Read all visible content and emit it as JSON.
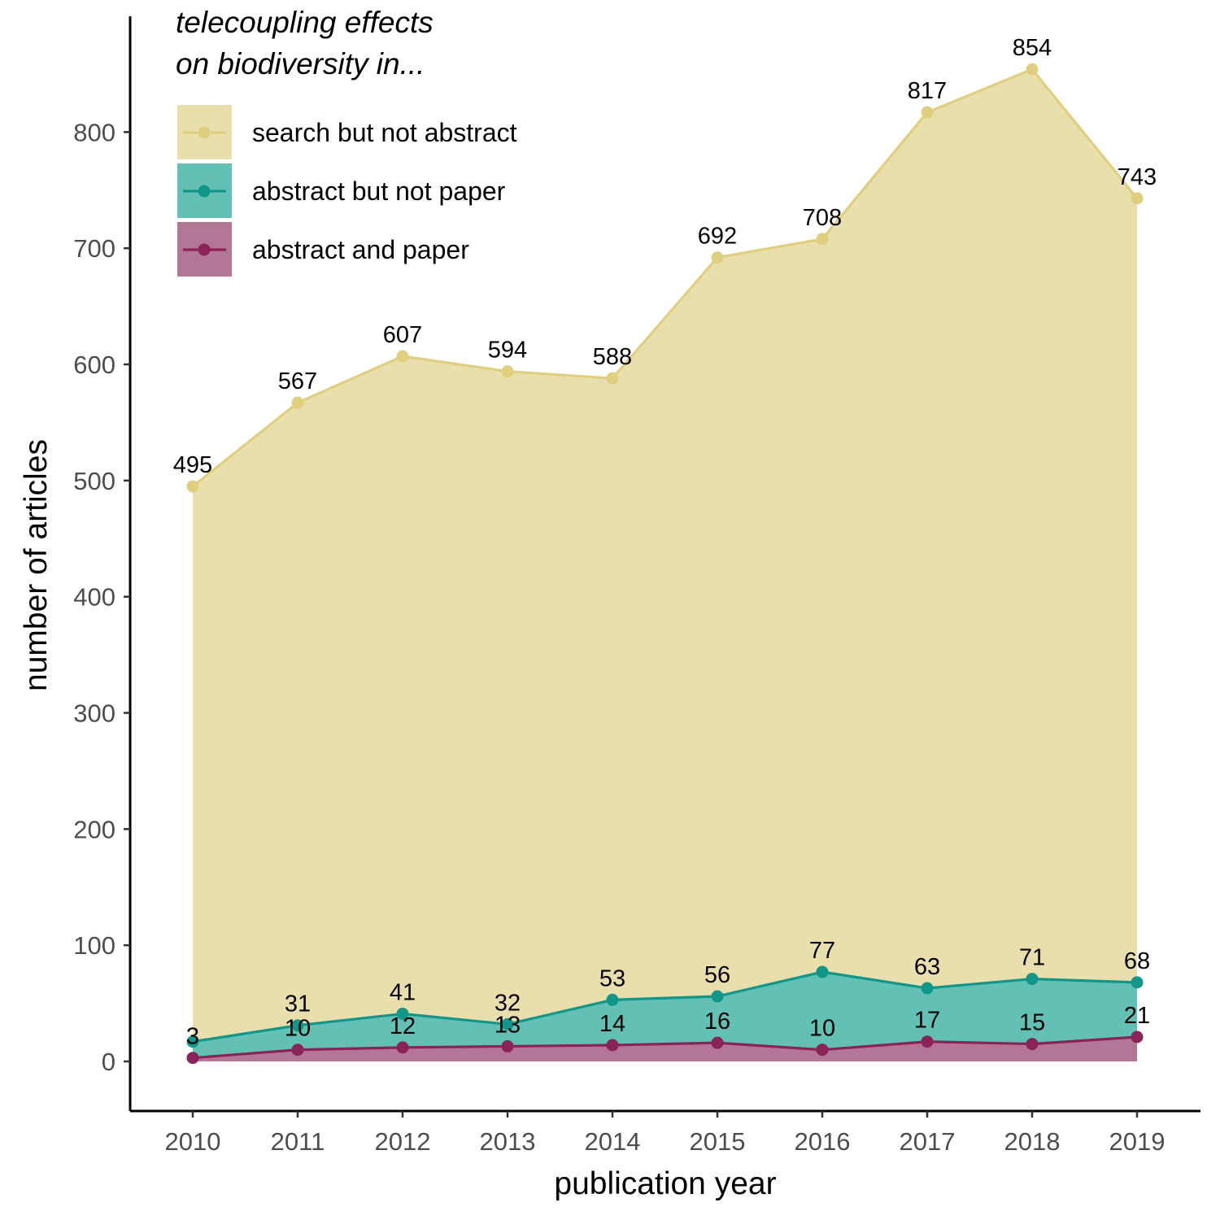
{
  "chart_data": {
    "type": "area",
    "x": [
      "2010",
      "2011",
      "2012",
      "2013",
      "2014",
      "2015",
      "2016",
      "2017",
      "2018",
      "2019"
    ],
    "series": [
      {
        "name": "search but not abstract",
        "values": [
          495,
          567,
          607,
          594,
          588,
          692,
          708,
          817,
          854,
          743
        ],
        "color": "#e0cf7f",
        "fill": "#e9dfac"
      },
      {
        "name": "abstract but not paper",
        "values": [
          17,
          31,
          41,
          32,
          53,
          56,
          77,
          63,
          71,
          68
        ],
        "color": "#10978a",
        "fill": "#62c0b4"
      },
      {
        "name": "abstract and paper",
        "values": [
          3,
          10,
          12,
          13,
          14,
          16,
          10,
          17,
          15,
          21
        ],
        "color": "#8a2357",
        "fill": "#b47696"
      }
    ],
    "data_labels": [
      [
        "495",
        "567",
        "607",
        "594",
        "588",
        "692",
        "708",
        "817",
        "854",
        "743"
      ],
      [
        "",
        "31",
        "41",
        "32",
        "53",
        "56",
        "77",
        "63",
        "71",
        "68"
      ],
      [
        "3",
        "10",
        "12",
        "13",
        "14",
        "16",
        "10",
        "17",
        "15",
        "21"
      ]
    ],
    "legend_title_lines": [
      "telecoupling effects",
      "on biodiversity in..."
    ],
    "xlabel": "publication year",
    "ylabel": "number of articles",
    "y_ticks": [
      0,
      100,
      200,
      300,
      400,
      500,
      600,
      700,
      800
    ],
    "ylim": [
      -40,
      900
    ],
    "grid": false,
    "legend_position": "top-left"
  }
}
